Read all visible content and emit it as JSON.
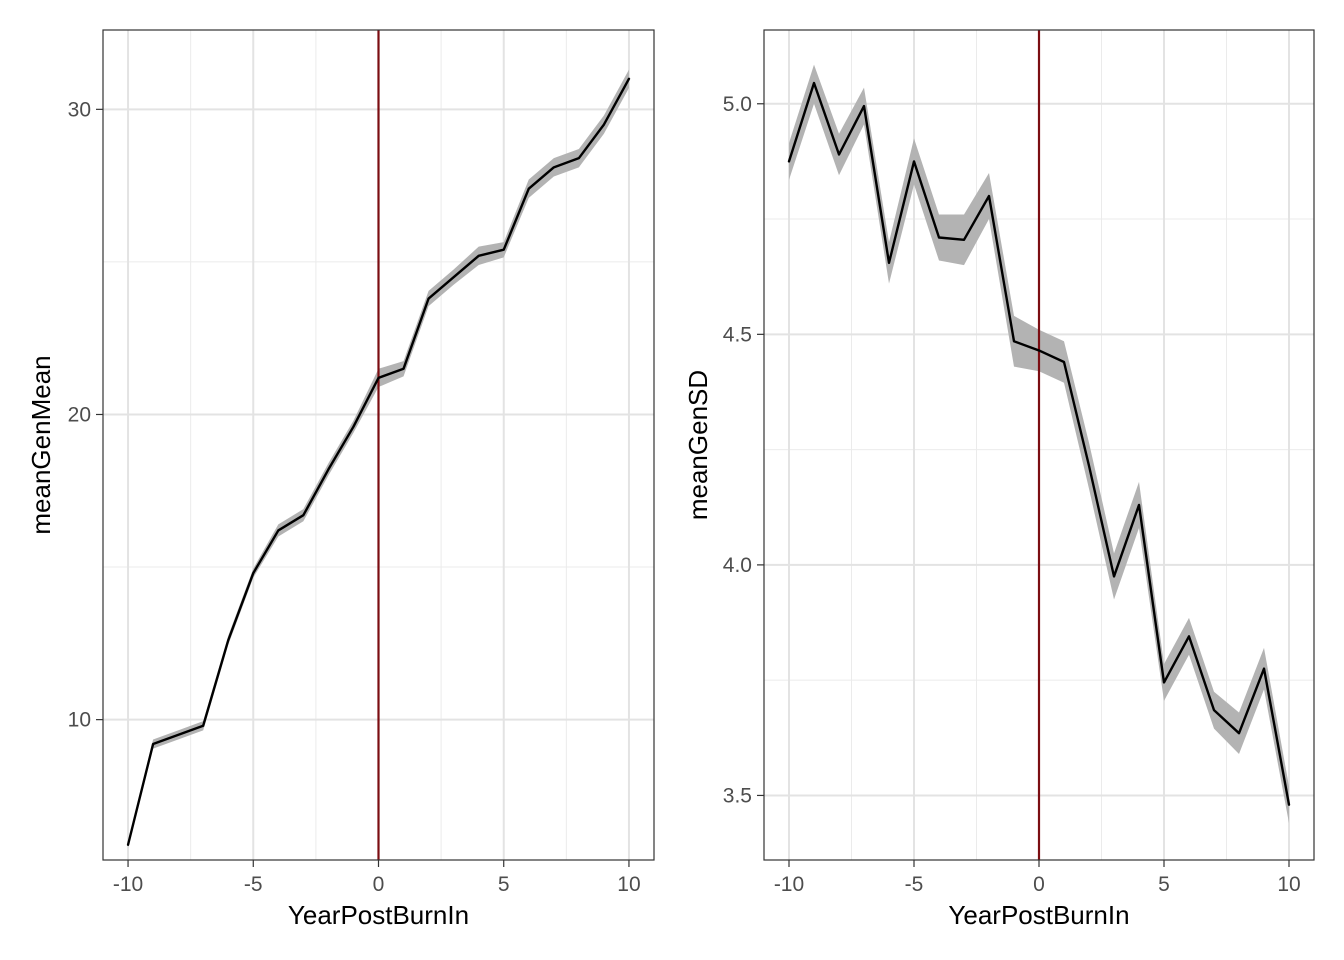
{
  "chart_data": [
    {
      "type": "line",
      "xlabel": "YearPostBurnIn",
      "ylabel": "meanGenMean",
      "xlim": [
        -11,
        11
      ],
      "ylim": [
        5.4,
        32.6
      ],
      "x_ticks": [
        -10,
        -5,
        0,
        5,
        10
      ],
      "x_tick_labels": [
        "-10",
        "-5",
        "0",
        "5",
        "10"
      ],
      "y_ticks": [
        10,
        20,
        30
      ],
      "y_tick_labels": [
        "10",
        "20",
        "30"
      ],
      "grid": true,
      "vline": {
        "x": 0,
        "color": "#7b0d12"
      },
      "line_color": "#000000",
      "ribbon_color": "#b3b3b3",
      "series": [
        {
          "x": [
            -10,
            -9,
            -8,
            -7,
            -6,
            -5,
            -4,
            -3,
            -2,
            -1,
            0,
            1,
            2,
            3,
            4,
            5,
            6,
            7,
            8,
            9,
            10
          ],
          "values": [
            5.9,
            9.2,
            9.5,
            9.8,
            12.6,
            14.8,
            16.2,
            16.7,
            18.2,
            19.6,
            21.2,
            21.5,
            23.8,
            24.5,
            25.2,
            25.4,
            27.4,
            28.1,
            28.4,
            29.5,
            31.0
          ],
          "lower": [
            5.8,
            9.05,
            9.35,
            9.65,
            12.45,
            14.65,
            16.0,
            16.5,
            18.0,
            19.4,
            20.9,
            21.25,
            23.55,
            24.25,
            24.9,
            25.15,
            27.1,
            27.8,
            28.1,
            29.2,
            30.7
          ],
          "upper": [
            6.0,
            9.35,
            9.65,
            9.95,
            12.75,
            14.95,
            16.4,
            16.9,
            18.4,
            19.8,
            21.5,
            21.75,
            24.05,
            24.75,
            25.5,
            25.65,
            27.7,
            28.4,
            28.7,
            29.8,
            31.3
          ]
        }
      ]
    },
    {
      "type": "line",
      "xlabel": "YearPostBurnIn",
      "ylabel": "meanGenSD",
      "xlim": [
        -11,
        11
      ],
      "ylim": [
        3.36,
        5.16
      ],
      "x_ticks": [
        -10,
        -5,
        0,
        5,
        10
      ],
      "x_tick_labels": [
        "-10",
        "-5",
        "0",
        "5",
        "10"
      ],
      "y_ticks": [
        3.5,
        4.0,
        4.5,
        5.0
      ],
      "y_tick_labels": [
        "3.5",
        "4.0",
        "4.5",
        "5.0"
      ],
      "grid": true,
      "vline": {
        "x": 0,
        "color": "#7b0d12"
      },
      "line_color": "#000000",
      "ribbon_color": "#b3b3b3",
      "series": [
        {
          "x": [
            -10,
            -9,
            -8,
            -7,
            -6,
            -5,
            -4,
            -3,
            -2,
            -1,
            0,
            1,
            2,
            3,
            4,
            5,
            6,
            7,
            8,
            9,
            10
          ],
          "values": [
            4.875,
            5.045,
            4.89,
            4.995,
            4.655,
            4.875,
            4.71,
            4.705,
            4.8,
            4.485,
            4.465,
            4.44,
            4.215,
            3.975,
            4.13,
            3.745,
            3.845,
            3.685,
            3.635,
            3.775,
            3.48
          ],
          "lower": [
            4.835,
            5.0,
            4.845,
            4.955,
            4.61,
            4.825,
            4.66,
            4.65,
            4.75,
            4.43,
            4.42,
            4.395,
            4.165,
            3.925,
            4.08,
            3.705,
            3.805,
            3.645,
            3.59,
            3.73,
            3.44
          ],
          "upper": [
            4.915,
            5.085,
            4.935,
            5.035,
            4.7,
            4.925,
            4.76,
            4.76,
            4.85,
            4.54,
            4.51,
            4.485,
            4.265,
            4.025,
            4.18,
            3.785,
            3.885,
            3.725,
            3.68,
            3.82,
            3.52
          ]
        }
      ]
    }
  ]
}
